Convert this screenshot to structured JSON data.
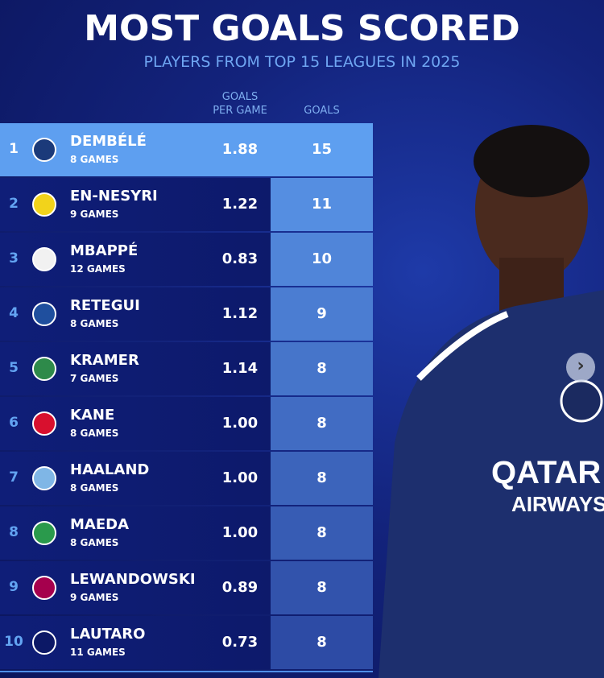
{
  "title": "MOST GOALS SCORED",
  "subtitle": "PLAYERS FROM TOP 15 LEAGUES IN 2025",
  "chart_data": {
    "type": "table",
    "columns": [
      "GOALS PER GAME",
      "GOALS"
    ],
    "header_gpg_line1": "GOALS",
    "header_gpg_line2": "PER GAME",
    "header_goals": "GOALS",
    "rows": [
      {
        "rank": "1",
        "name": "DEMBÉLÉ",
        "games": "8 GAMES",
        "gpg": "1.88",
        "goals": "15",
        "club_color": "#1b3a7a"
      },
      {
        "rank": "2",
        "name": "EN-NESYRI",
        "games": "9 GAMES",
        "gpg": "1.22",
        "goals": "11",
        "club_color": "#f2d31b"
      },
      {
        "rank": "3",
        "name": "MBAPPÉ",
        "games": "12 GAMES",
        "gpg": "0.83",
        "goals": "10",
        "club_color": "#f1f1f1"
      },
      {
        "rank": "4",
        "name": "RETEGUI",
        "games": "8 GAMES",
        "gpg": "1.12",
        "goals": "9",
        "club_color": "#1f4f9e"
      },
      {
        "rank": "5",
        "name": "KRAMER",
        "games": "7 GAMES",
        "gpg": "1.14",
        "goals": "8",
        "club_color": "#2e8a4a"
      },
      {
        "rank": "6",
        "name": "KANE",
        "games": "8 GAMES",
        "gpg": "1.00",
        "goals": "8",
        "club_color": "#d8102e"
      },
      {
        "rank": "7",
        "name": "HAALAND",
        "games": "8 GAMES",
        "gpg": "1.00",
        "goals": "8",
        "club_color": "#7fb6e6"
      },
      {
        "rank": "8",
        "name": "MAEDA",
        "games": "8 GAMES",
        "gpg": "1.00",
        "goals": "8",
        "club_color": "#2a9a4c"
      },
      {
        "rank": "9",
        "name": "LEWANDOWSKI",
        "games": "9 GAMES",
        "gpg": "0.89",
        "goals": "8",
        "club_color": "#a5004d"
      },
      {
        "rank": "10",
        "name": "LAUTARO",
        "games": "11 GAMES",
        "gpg": "0.73",
        "goals": "8",
        "club_color": "#0c1866"
      }
    ]
  },
  "colors": {
    "highlight": "#5e9ff0",
    "background": "#13237c",
    "accent": "#63a4f2"
  },
  "next_button": "›"
}
